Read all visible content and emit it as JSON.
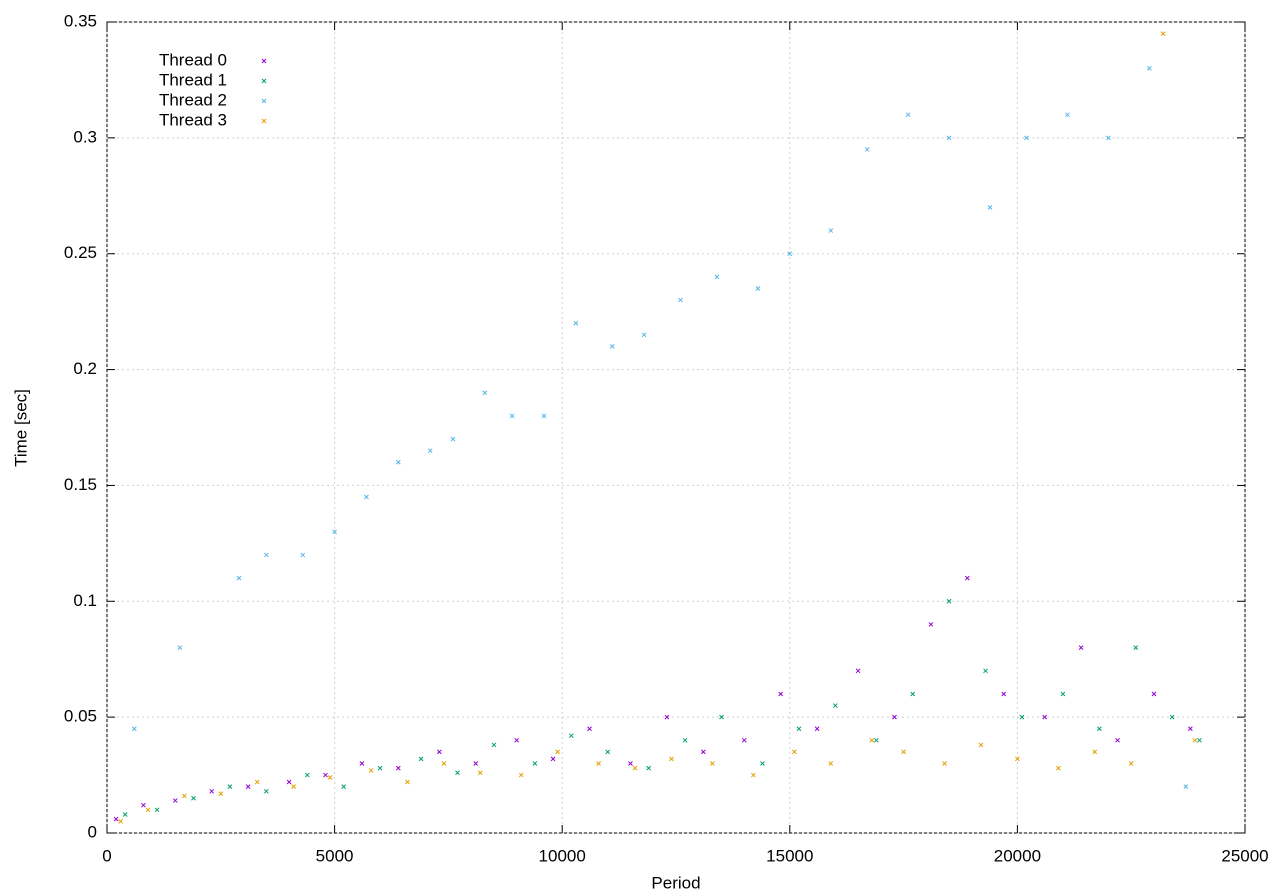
{
  "chart_data": {
    "type": "scatter",
    "xlabel": "Period",
    "ylabel": "Time [sec]",
    "xlim": [
      0,
      25000
    ],
    "xticks": [
      0,
      5000,
      10000,
      15000,
      20000,
      25000
    ],
    "ylim": [
      0,
      0.35
    ],
    "yticks": [
      0,
      0.05,
      0.1,
      0.15,
      0.2,
      0.25,
      0.3,
      0.35
    ],
    "grid": true,
    "legend": "upper-left",
    "series": [
      {
        "name": "Thread 0",
        "color": "#9400d3",
        "x": [
          200,
          800,
          1500,
          2300,
          3100,
          4000,
          4800,
          5600,
          6400,
          7300,
          8100,
          9000,
          9800,
          10600,
          11500,
          12300,
          13100,
          14000,
          14800,
          15600,
          16500,
          17300,
          18100,
          18900,
          19700,
          20600,
          21400,
          22200,
          23000,
          23800
        ],
        "values": [
          0.006,
          0.012,
          0.014,
          0.018,
          0.02,
          0.022,
          0.025,
          0.03,
          0.028,
          0.035,
          0.03,
          0.04,
          0.032,
          0.045,
          0.03,
          0.05,
          0.035,
          0.04,
          0.06,
          0.045,
          0.07,
          0.05,
          0.09,
          0.11,
          0.06,
          0.05,
          0.08,
          0.04,
          0.06,
          0.045
        ]
      },
      {
        "name": "Thread 1",
        "color": "#009e73",
        "x": [
          400,
          1100,
          1900,
          2700,
          3500,
          4400,
          5200,
          6000,
          6900,
          7700,
          8500,
          9400,
          10200,
          11000,
          11900,
          12700,
          13500,
          14400,
          15200,
          16000,
          16900,
          17700,
          18500,
          19300,
          20100,
          21000,
          21800,
          22600,
          23400,
          24000
        ],
        "values": [
          0.008,
          0.01,
          0.015,
          0.02,
          0.018,
          0.025,
          0.02,
          0.028,
          0.032,
          0.026,
          0.038,
          0.03,
          0.042,
          0.035,
          0.028,
          0.04,
          0.05,
          0.03,
          0.045,
          0.055,
          0.04,
          0.06,
          0.1,
          0.07,
          0.05,
          0.06,
          0.045,
          0.08,
          0.05,
          0.04
        ]
      },
      {
        "name": "Thread 2",
        "color": "#56b4e9",
        "x": [
          600,
          1600,
          2900,
          3500,
          4300,
          5000,
          5700,
          6400,
          7100,
          7600,
          8300,
          8900,
          9600,
          10300,
          11100,
          11800,
          12600,
          13400,
          14300,
          15000,
          15900,
          16700,
          17600,
          18500,
          19400,
          20200,
          21100,
          22000,
          22900,
          23700
        ],
        "values": [
          0.045,
          0.08,
          0.11,
          0.12,
          0.12,
          0.13,
          0.145,
          0.16,
          0.165,
          0.17,
          0.19,
          0.18,
          0.18,
          0.22,
          0.21,
          0.215,
          0.23,
          0.24,
          0.235,
          0.25,
          0.26,
          0.295,
          0.31,
          0.3,
          0.27,
          0.3,
          0.31,
          0.3,
          0.33,
          0.02
        ]
      },
      {
        "name": "Thread 3",
        "color": "#e69f00",
        "x": [
          300,
          900,
          1700,
          2500,
          3300,
          4100,
          4900,
          5800,
          6600,
          7400,
          8200,
          9100,
          9900,
          10800,
          11600,
          12400,
          13300,
          14200,
          15100,
          15900,
          16800,
          17500,
          18400,
          19200,
          20000,
          20900,
          21700,
          22500,
          23200,
          23900
        ],
        "values": [
          0.005,
          0.01,
          0.016,
          0.017,
          0.022,
          0.02,
          0.024,
          0.027,
          0.022,
          0.03,
          0.026,
          0.025,
          0.035,
          0.03,
          0.028,
          0.032,
          0.03,
          0.025,
          0.035,
          0.03,
          0.04,
          0.035,
          0.03,
          0.038,
          0.032,
          0.028,
          0.035,
          0.03,
          0.345,
          0.04
        ]
      }
    ]
  }
}
